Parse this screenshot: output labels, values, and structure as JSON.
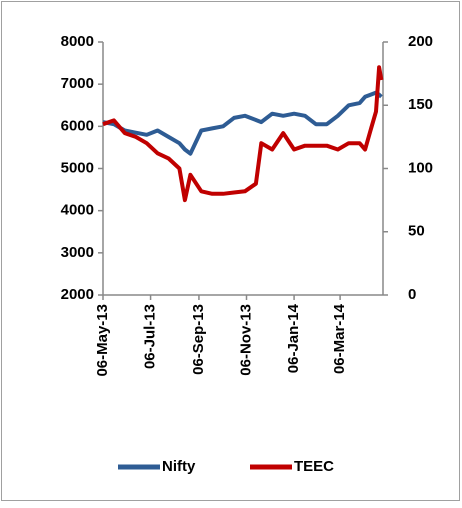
{
  "chart_data": {
    "type": "line",
    "x": [
      "2013-05-06",
      "2013-05-20",
      "2013-06-03",
      "2013-06-17",
      "2013-07-01",
      "2013-07-15",
      "2013-07-29",
      "2013-08-12",
      "2013-08-19",
      "2013-08-26",
      "2013-09-09",
      "2013-09-23",
      "2013-10-07",
      "2013-10-21",
      "2013-11-04",
      "2013-11-18",
      "2013-11-25",
      "2013-12-09",
      "2013-12-23",
      "2014-01-06",
      "2014-01-20",
      "2014-02-03",
      "2014-02-17",
      "2014-03-03",
      "2014-03-17",
      "2014-03-31",
      "2014-04-07",
      "2014-04-14",
      "2014-04-21",
      "2014-04-25",
      "2014-04-28"
    ],
    "series": [
      {
        "name": "Nifty",
        "color": "#2e5c94",
        "values": [
          6100,
          6050,
          5900,
          5850,
          5800,
          5900,
          5750,
          5600,
          5450,
          5350,
          5900,
          5950,
          6000,
          6200,
          6250,
          6150,
          6100,
          6300,
          6250,
          6300,
          6250,
          6050,
          6050,
          6250,
          6500,
          6550,
          6700,
          6750,
          6800,
          6750,
          6700
        ]
      },
      {
        "name": "TEEC",
        "color": "#c00000",
        "axis": "y2",
        "values": [
          135,
          138,
          128,
          125,
          120,
          112,
          108,
          100,
          75,
          95,
          82,
          80,
          80,
          81,
          82,
          88,
          120,
          115,
          128,
          115,
          118,
          118,
          118,
          115,
          120,
          120,
          115,
          130,
          145,
          180,
          170
        ]
      }
    ],
    "xlim": [
      "2013-05-06",
      "2014-04-30"
    ],
    "xticks": [
      {
        "value": "2013-05-06",
        "label": "06-May-13"
      },
      {
        "value": "2013-07-06",
        "label": "06-Jul-13"
      },
      {
        "value": "2013-09-06",
        "label": "06-Sep-13"
      },
      {
        "value": "2013-11-06",
        "label": "06-Nov-13"
      },
      {
        "value": "2014-01-06",
        "label": "06-Jan-14"
      },
      {
        "value": "2014-03-06",
        "label": "06-Mar-14"
      }
    ],
    "ylim": [
      2000,
      8000
    ],
    "yticks": [
      2000,
      3000,
      4000,
      5000,
      6000,
      7000,
      8000
    ],
    "y2lim": [
      0,
      200
    ],
    "y2ticks": [
      0,
      50,
      100,
      150,
      200
    ],
    "legend": "bottom"
  }
}
